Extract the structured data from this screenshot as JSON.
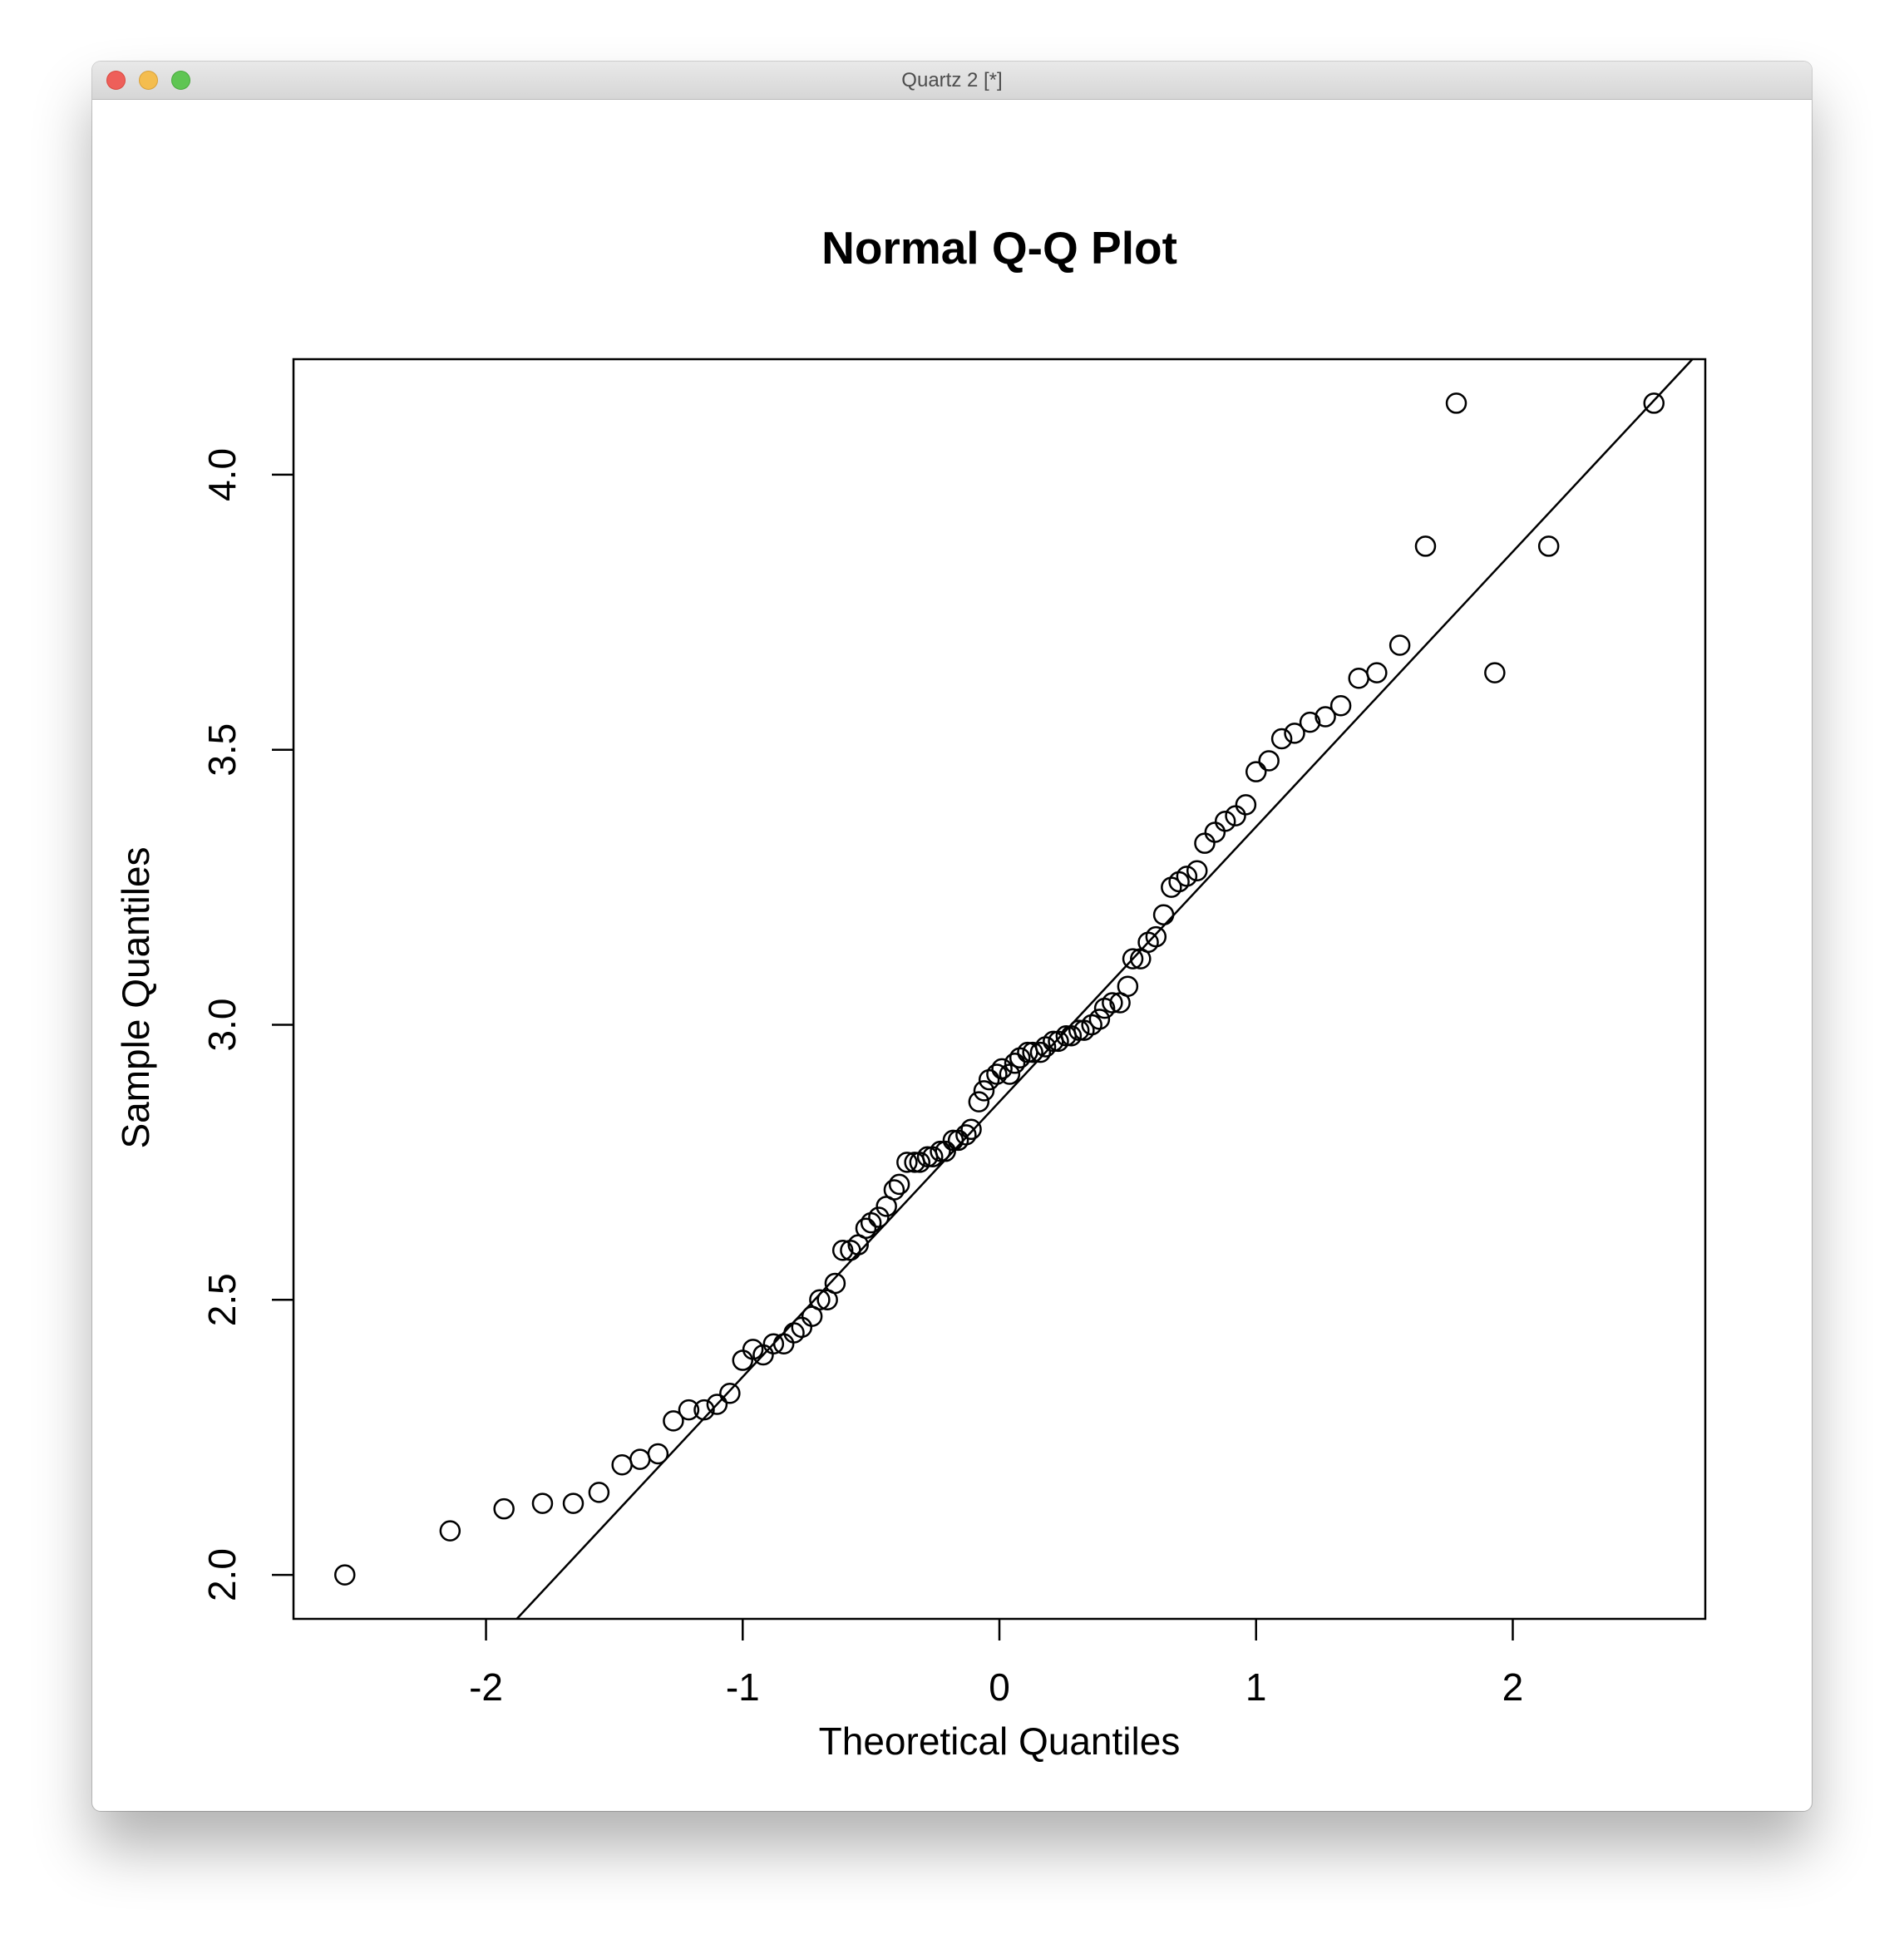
{
  "window": {
    "title": "Quartz 2 [*]",
    "buttons": {
      "close": "close",
      "minimize": "minimize",
      "zoom": "zoom"
    }
  },
  "chart_data": {
    "type": "scatter",
    "title": "Normal Q-Q Plot",
    "xlabel": "Theoretical Quantiles",
    "ylabel": "Sample Quantiles",
    "xlim": [
      -2.75,
      2.75
    ],
    "ylim": [
      1.92,
      4.21
    ],
    "xticks": [
      -2,
      -1,
      0,
      1,
      2
    ],
    "xtick_labels": [
      "-2",
      "-1",
      "0",
      "1",
      "2"
    ],
    "yticks": [
      2.0,
      2.5,
      3.0,
      3.5,
      4.0
    ],
    "ytick_labels": [
      "2.0",
      "2.5",
      "3.0",
      "3.5",
      "4.0"
    ],
    "grid": false,
    "marker": "open-circle",
    "reference_line": {
      "intercept": 2.86,
      "slope": 0.5
    },
    "points": {
      "x": [
        -2.55,
        -2.14,
        -1.93,
        -1.78,
        -1.66,
        -1.56,
        -1.47,
        -1.4,
        -1.33,
        -1.27,
        -1.21,
        -1.15,
        -1.1,
        -1.05,
        -1.0,
        -0.96,
        -0.92,
        -0.88,
        -0.84,
        -0.8,
        -0.77,
        -0.73,
        -0.7,
        -0.67,
        -0.64,
        -0.61,
        -0.58,
        -0.55,
        -0.52,
        -0.5,
        -0.47,
        -0.44,
        -0.41,
        -0.39,
        -0.36,
        -0.33,
        -0.31,
        -0.28,
        -0.26,
        -0.23,
        -0.21,
        -0.18,
        -0.16,
        -0.13,
        -0.11,
        -0.08,
        -0.06,
        -0.04,
        -0.01,
        0.01,
        0.04,
        0.06,
        0.08,
        0.11,
        0.13,
        0.16,
        0.18,
        0.21,
        0.23,
        0.26,
        0.28,
        0.31,
        0.33,
        0.36,
        0.39,
        0.41,
        0.44,
        0.47,
        0.5,
        0.52,
        0.55,
        0.58,
        0.61,
        0.64,
        0.67,
        0.7,
        0.73,
        0.77,
        0.8,
        0.84,
        0.88,
        0.92,
        0.96,
        1.0,
        1.05,
        1.1,
        1.15,
        1.21,
        1.27,
        1.33,
        1.4,
        1.47,
        1.56,
        1.66,
        1.78,
        1.93,
        2.14,
        2.55
      ],
      "y": [
        2.0,
        2.08,
        2.12,
        2.13,
        2.13,
        2.15,
        2.2,
        2.21,
        2.22,
        2.28,
        2.3,
        2.3,
        2.31,
        2.33,
        2.39,
        2.41,
        2.4,
        2.42,
        2.42,
        2.44,
        2.45,
        2.47,
        2.5,
        2.5,
        2.53,
        2.59,
        2.59,
        2.6,
        2.63,
        2.64,
        2.65,
        2.67,
        2.7,
        2.71,
        2.75,
        2.75,
        2.75,
        2.76,
        2.76,
        2.77,
        2.77,
        2.79,
        2.79,
        2.8,
        2.81,
        2.86,
        2.88,
        2.9,
        2.91,
        2.92,
        2.91,
        2.93,
        2.94,
        2.95,
        2.95,
        2.95,
        2.96,
        2.97,
        2.97,
        2.98,
        2.98,
        2.99,
        2.99,
        3.0,
        3.01,
        3.03,
        3.04,
        3.04,
        3.07,
        3.12,
        3.12,
        3.15,
        3.16,
        3.2,
        3.25,
        3.26,
        3.27,
        3.28,
        3.33,
        3.35,
        3.37,
        3.38,
        3.4,
        3.46,
        3.48,
        3.52,
        3.53,
        3.55,
        3.56,
        3.58,
        3.63,
        3.64,
        3.69,
        3.87,
        4.13,
        3.64,
        3.87,
        4.13
      ]
    }
  }
}
